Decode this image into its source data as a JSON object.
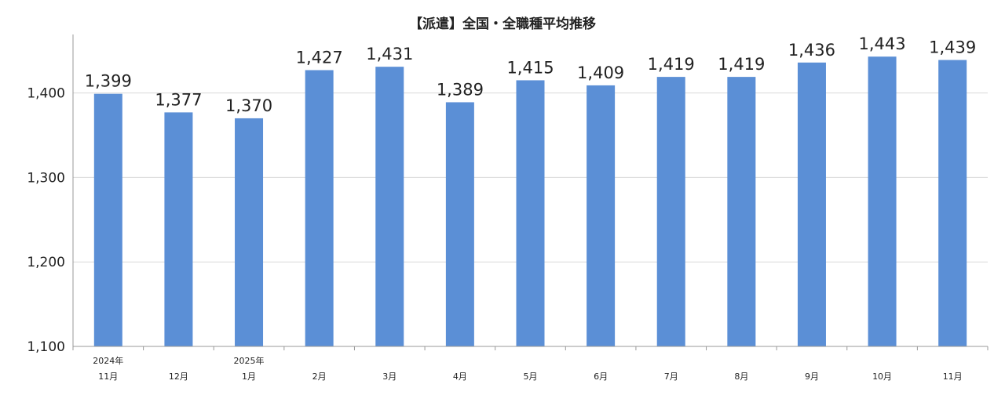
{
  "chart_data": {
    "type": "bar",
    "title": "【派遣】全国・全職種平均推移",
    "xlabel": "",
    "ylabel": "",
    "categories": [
      {
        "year": "2024年",
        "month": "11月"
      },
      {
        "year": "",
        "month": "12月"
      },
      {
        "year": "2025年",
        "month": "1月"
      },
      {
        "year": "",
        "month": "2月"
      },
      {
        "year": "",
        "month": "3月"
      },
      {
        "year": "",
        "month": "4月"
      },
      {
        "year": "",
        "month": "5月"
      },
      {
        "year": "",
        "month": "6月"
      },
      {
        "year": "",
        "month": "7月"
      },
      {
        "year": "",
        "month": "8月"
      },
      {
        "year": "",
        "month": "9月"
      },
      {
        "year": "",
        "month": "10月"
      },
      {
        "year": "",
        "month": "11月"
      }
    ],
    "values": [
      1399,
      1377,
      1370,
      1427,
      1431,
      1389,
      1415,
      1409,
      1419,
      1419,
      1436,
      1443,
      1439
    ],
    "value_labels": [
      "1,399",
      "1,377",
      "1,370",
      "1,427",
      "1,431",
      "1,389",
      "1,415",
      "1,409",
      "1,419",
      "1,419",
      "1,436",
      "1,443",
      "1,439"
    ],
    "ylim": [
      1100,
      1400
    ],
    "yticks": [
      {
        "value": 1100,
        "label": "1,100"
      },
      {
        "value": 1200,
        "label": "1,200"
      },
      {
        "value": 1300,
        "label": "1,300"
      },
      {
        "value": 1400,
        "label": "1,400"
      }
    ],
    "grid": true,
    "legend": "none",
    "colors": {
      "bar": "#5B8FD6",
      "grid": "#D9D9D9",
      "axis": "#999999",
      "text": "#222222"
    }
  }
}
